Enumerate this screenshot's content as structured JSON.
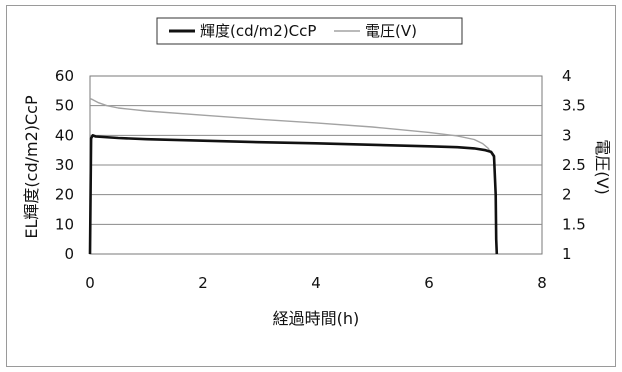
{
  "chart_data": {
    "type": "line",
    "title": "",
    "xlabel": "経過時間(h)",
    "ylabel": "EL輝度(cd/m2)CcP",
    "y2label": "電圧(V)",
    "xlim": [
      0,
      8
    ],
    "ylim": [
      0,
      60
    ],
    "y2lim": [
      1,
      4
    ],
    "x_ticks": [
      "0",
      "2",
      "4",
      "6",
      "8"
    ],
    "y_ticks": [
      "0",
      "10",
      "20",
      "30",
      "40",
      "50",
      "60"
    ],
    "y2_ticks": [
      "1",
      "1.5",
      "2",
      "2.5",
      "3",
      "3.5",
      "4"
    ],
    "grid": "horizontal",
    "legend_position": "top",
    "series": [
      {
        "name": "輝度(cd/m2)CcP",
        "axis": "left",
        "color": "#111111",
        "x": [
          0,
          0.02,
          0.05,
          0.1,
          0.5,
          1,
          2,
          3,
          4,
          5,
          6,
          6.5,
          6.8,
          7.0,
          7.1,
          7.15,
          7.18,
          7.19,
          7.2
        ],
        "y": [
          0,
          39,
          40,
          39.6,
          39.1,
          38.7,
          38.2,
          37.7,
          37.3,
          36.8,
          36.3,
          36.0,
          35.6,
          35.0,
          34.4,
          33,
          20,
          5,
          0
        ]
      },
      {
        "name": "電圧(V)",
        "axis": "right",
        "color": "#a3a3a3",
        "x": [
          0,
          0.05,
          0.15,
          0.3,
          0.5,
          0.8,
          1,
          2,
          3,
          4,
          5,
          6,
          6.5,
          6.8,
          6.95,
          7.05,
          7.1,
          7.15
        ],
        "y": [
          3.62,
          3.6,
          3.55,
          3.5,
          3.46,
          3.43,
          3.41,
          3.34,
          3.27,
          3.21,
          3.14,
          3.05,
          2.99,
          2.93,
          2.86,
          2.78,
          2.7,
          2.62
        ]
      }
    ]
  }
}
